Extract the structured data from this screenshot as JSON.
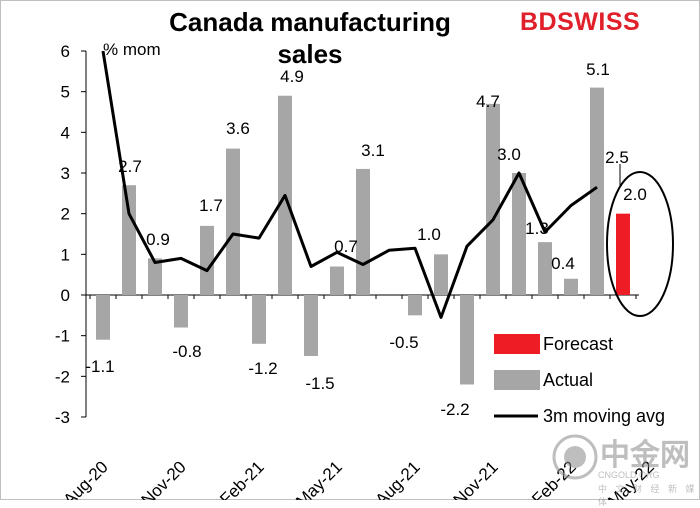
{
  "chart_data": {
    "type": "bar",
    "title": "Canada manufacturing sales",
    "ylabel": "% mom",
    "ylim": [
      -3,
      6
    ],
    "yticks": [
      "-3",
      "-2",
      "-1",
      "0",
      "1",
      "2",
      "3",
      "4",
      "5",
      "6"
    ],
    "x_tick_labels": [
      "Aug-20",
      "Nov-20",
      "Feb-21",
      "May-21",
      "Aug-21",
      "Nov-21",
      "Feb-22",
      "May-22"
    ],
    "series": [
      {
        "name": "Actual",
        "color": "#a6a6a6",
        "values": [
          -1.1,
          2.7,
          0.9,
          -0.8,
          1.7,
          3.6,
          -1.2,
          4.9,
          -1.5,
          0.7,
          3.1,
          null,
          -0.5,
          1.0,
          -2.2,
          4.7,
          3.0,
          1.3,
          0.4,
          5.1,
          null
        ]
      },
      {
        "name": "Forecast",
        "color": "#ee1c25",
        "values": [
          null,
          null,
          null,
          null,
          null,
          null,
          null,
          null,
          null,
          null,
          null,
          null,
          null,
          null,
          null,
          null,
          null,
          null,
          null,
          null,
          2.0
        ]
      },
      {
        "name": "3m moving avg",
        "color": "#000000",
        "values": [
          6.0,
          2.0,
          0.8,
          0.9,
          0.6,
          1.5,
          1.4,
          2.45,
          0.7,
          1.05,
          0.75,
          1.1,
          1.15,
          -0.55,
          1.2,
          1.85,
          3.0,
          1.55,
          2.2,
          2.65,
          null
        ]
      }
    ],
    "data_labels": [
      {
        "index": 0,
        "text": "-1.1"
      },
      {
        "index": 1,
        "text": "2.7"
      },
      {
        "index": 2,
        "text": "0.9"
      },
      {
        "index": 3,
        "text": "-0.8"
      },
      {
        "index": 4,
        "text": "1.7"
      },
      {
        "index": 5,
        "text": "3.6"
      },
      {
        "index": 6,
        "text": "-1.2"
      },
      {
        "index": 7,
        "text": "4.9"
      },
      {
        "index": 8,
        "text": "-1.5"
      },
      {
        "index": 9,
        "text": "0.7"
      },
      {
        "index": 10,
        "text": "3.1"
      },
      {
        "index": 12,
        "text": "-0.5"
      },
      {
        "index": 13,
        "text": "1.0"
      },
      {
        "index": 14,
        "text": "-2.2"
      },
      {
        "index": 15,
        "text": "4.7"
      },
      {
        "index": 16,
        "text": "3.0"
      },
      {
        "index": 17,
        "text": "1.3"
      },
      {
        "index": 18,
        "text": "0.4"
      },
      {
        "index": 19,
        "text": "5.1"
      },
      {
        "index": 19,
        "text": "2.5"
      },
      {
        "index": 20,
        "text": "2.0"
      }
    ],
    "legend": {
      "position": "bottom-right",
      "items": [
        "Forecast",
        "Actual",
        "3m moving avg"
      ]
    },
    "annotation": "highlight ellipse around latest actual and forecast",
    "grid": false
  },
  "branding": {
    "logo_text": "BDSWISS",
    "watermark": "中金网",
    "watermark_sub": "CNGOLD.ORG",
    "watermark_sub2": "中 文 财 经 新 媒 体"
  }
}
